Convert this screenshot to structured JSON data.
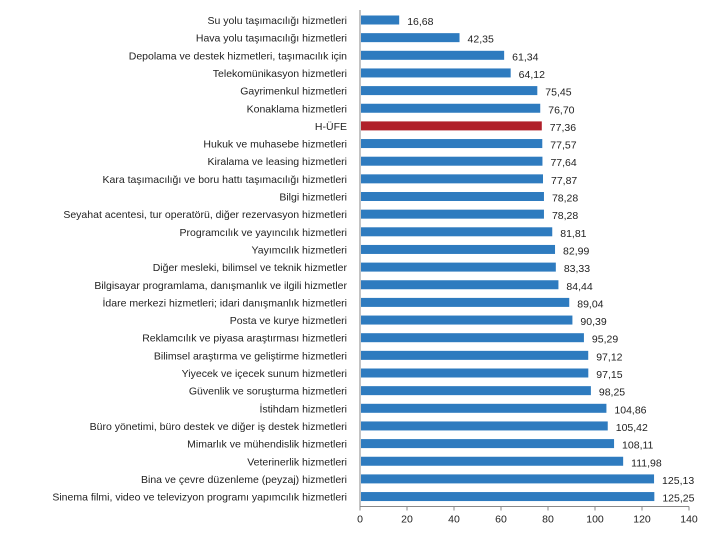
{
  "chart_data": {
    "type": "bar",
    "orientation": "horizontal",
    "title": "",
    "xlabel": "",
    "ylabel": "",
    "xlim": [
      0,
      140
    ],
    "xticks": [
      0,
      20,
      40,
      60,
      80,
      100,
      120,
      140
    ],
    "grid": false,
    "colors": {
      "default": "#2e7bbf",
      "highlight": "#b0202a"
    },
    "highlight": "H-ÜFE",
    "categories": [
      "Su yolu taşımacılığı hizmetleri",
      "Hava yolu taşımacılığı hizmetleri",
      "Depolama ve destek hizmetleri, taşımacılık için",
      "Telekomünikasyon hizmetleri",
      "Gayrimenkul hizmetleri",
      "Konaklama hizmetleri",
      "H-ÜFE",
      "Hukuk ve muhasebe hizmetleri",
      "Kiralama ve leasing hizmetleri",
      "Kara taşımacılığı ve boru hattı taşımacılığı hizmetleri",
      "Bilgi hizmetleri",
      "Seyahat acentesi, tur operatörü, diğer rezervasyon hizmetleri",
      "Programcılık ve yayıncılık hizmetleri",
      "Yayımcılık hizmetleri",
      "Diğer mesleki, bilimsel ve teknik hizmetler",
      "Bilgisayar programlama, danışmanlık ve ilgili hizmetler",
      "İdare merkezi hizmetleri; idari danışmanlık hizmetleri",
      "Posta ve kurye hizmetleri",
      "Reklamcılık ve piyasa araştırması hizmetleri",
      "Bilimsel araştırma ve geliştirme hizmetleri",
      "Yiyecek ve içecek sunum hizmetleri",
      "Güvenlik ve soruşturma hizmetleri",
      "İstihdam hizmetleri",
      "Büro yönetimi, büro destek ve diğer iş destek hizmetleri",
      "Mimarlık ve mühendislik hizmetleri",
      "Veterinerlik hizmetleri",
      "Bina ve çevre düzenleme (peyzaj) hizmetleri",
      "Sinema filmi, video ve televizyon programı yapımcılık hizmetleri"
    ],
    "values": [
      16.68,
      42.35,
      61.34,
      64.12,
      75.45,
      76.7,
      77.36,
      77.57,
      77.64,
      77.87,
      78.28,
      78.28,
      81.81,
      82.99,
      83.33,
      84.44,
      89.04,
      90.39,
      95.29,
      97.12,
      97.15,
      98.25,
      104.86,
      105.42,
      108.11,
      111.98,
      125.13,
      125.25
    ],
    "value_labels": [
      "16,68",
      "42,35",
      "61,34",
      "64,12",
      "75,45",
      "76,70",
      "77,36",
      "77,57",
      "77,64",
      "77,87",
      "78,28",
      "78,28",
      "81,81",
      "82,99",
      "83,33",
      "84,44",
      "89,04",
      "90,39",
      "95,29",
      "97,12",
      "97,15",
      "98,25",
      "104,86",
      "105,42",
      "108,11",
      "111,98",
      "125,13",
      "125,25"
    ]
  }
}
